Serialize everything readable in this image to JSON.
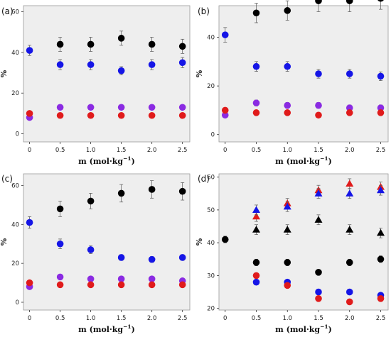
{
  "colors": {
    "black": "#000000",
    "blue": "#1515e6",
    "purple": "#8a2be2",
    "red": "#e01b1b"
  },
  "chart_data": [
    {
      "label": "(a)",
      "type": "scatter",
      "xlabel": "m (mol·kg",
      "xlabel_sup": "−1",
      "xlabel_close": ")",
      "ylabel": "%",
      "xlim": [
        -0.1,
        2.62
      ],
      "ylim": [
        -4,
        63
      ],
      "xticks": [
        0,
        0.5,
        1.0,
        1.5,
        2.0,
        2.5
      ],
      "xtick_labels": [
        "0",
        "0.5",
        "1.0",
        "1.5",
        "2.0",
        "2.5"
      ],
      "yticks": [
        0,
        20,
        40,
        60
      ],
      "series": [
        {
          "color": "black",
          "marker": "circle",
          "x": [
            0.5,
            1.0,
            1.5,
            2.0,
            2.5
          ],
          "y": [
            44,
            44,
            47,
            44,
            43
          ],
          "err": [
            3.5,
            3.5,
            3.5,
            3.5,
            3.5
          ]
        },
        {
          "color": "blue",
          "marker": "circle",
          "x": [
            0,
            0.5,
            1.0,
            1.5,
            2.0,
            2.5
          ],
          "y": [
            41,
            34,
            34,
            31,
            34,
            35
          ],
          "err": [
            2.5,
            2.5,
            2.5,
            2.0,
            2.5,
            2.5
          ]
        },
        {
          "color": "purple",
          "marker": "circle",
          "x": [
            0,
            0.5,
            1.0,
            1.5,
            2.0,
            2.5
          ],
          "y": [
            8,
            13,
            13,
            13,
            13,
            13
          ],
          "err": [
            1.2,
            1.2,
            1.2,
            1.2,
            1.2,
            1.2
          ]
        },
        {
          "color": "red",
          "marker": "circle",
          "x": [
            0,
            0.5,
            1.0,
            1.5,
            2.0,
            2.5
          ],
          "y": [
            10,
            9,
            9,
            9,
            9,
            9
          ],
          "err": [
            0.8,
            0.8,
            0.8,
            0.8,
            0.8,
            0.8
          ]
        }
      ]
    },
    {
      "label": "(b)",
      "type": "scatter",
      "xlabel": "m (mol·kg",
      "xlabel_sup": "−1",
      "xlabel_close": ")",
      "ylabel": "%",
      "xlim": [
        -0.1,
        2.62
      ],
      "ylim": [
        -3,
        53
      ],
      "xticks": [
        0,
        0.5,
        1.0,
        1.5,
        2.0,
        2.5
      ],
      "xtick_labels": [
        "0",
        "0.5",
        "1.0",
        "1.5",
        "2.0",
        "2.5"
      ],
      "yticks": [
        0,
        20,
        40
      ],
      "series": [
        {
          "color": "black",
          "marker": "circle",
          "x": [
            0.5,
            1.0,
            1.5,
            2.0,
            2.5
          ],
          "y": [
            50,
            51,
            55,
            55,
            56
          ],
          "err": [
            4,
            4,
            4.5,
            4.5,
            4.5
          ]
        },
        {
          "color": "blue",
          "marker": "circle",
          "x": [
            0,
            0.5,
            1.0,
            1.5,
            2.0,
            2.5
          ],
          "y": [
            41,
            28,
            28,
            25,
            25,
            24
          ],
          "err": [
            3,
            2,
            2,
            1.8,
            1.8,
            1.8
          ]
        },
        {
          "color": "purple",
          "marker": "circle",
          "x": [
            0,
            0.5,
            1.0,
            1.5,
            2.0,
            2.5
          ],
          "y": [
            8,
            13,
            12,
            12,
            11,
            11
          ],
          "err": [
            1,
            1.2,
            1.2,
            1.2,
            1.2,
            1.2
          ]
        },
        {
          "color": "red",
          "marker": "circle",
          "x": [
            0,
            0.5,
            1.0,
            1.5,
            2.0,
            2.5
          ],
          "y": [
            10,
            9,
            9,
            8,
            9,
            9
          ],
          "err": [
            0.8,
            0.8,
            0.8,
            0.8,
            0.8,
            0.8
          ]
        }
      ]
    },
    {
      "label": "(c)",
      "type": "scatter",
      "xlabel": "m (mol·kg",
      "xlabel_sup": "−1",
      "xlabel_close": ")",
      "ylabel": "%",
      "xlim": [
        -0.1,
        2.62
      ],
      "ylim": [
        -4,
        66
      ],
      "xticks": [
        0,
        0.5,
        1.0,
        1.5,
        2.0,
        2.5
      ],
      "xtick_labels": [
        "0",
        "0.5",
        "1.0",
        "1.5",
        "2.0",
        "2.5"
      ],
      "yticks": [
        0,
        20,
        40,
        60
      ],
      "series": [
        {
          "color": "black",
          "marker": "circle",
          "x": [
            0.5,
            1.0,
            1.5,
            2.0,
            2.5
          ],
          "y": [
            48,
            52,
            56,
            58,
            57
          ],
          "err": [
            4,
            4,
            4.5,
            4.5,
            4.5
          ]
        },
        {
          "color": "blue",
          "marker": "circle",
          "x": [
            0,
            0.5,
            1.0,
            1.5,
            2.0,
            2.5
          ],
          "y": [
            41,
            30,
            27,
            23,
            22,
            23
          ],
          "err": [
            3,
            2.5,
            2,
            1.5,
            1.5,
            1.5
          ]
        },
        {
          "color": "purple",
          "marker": "circle",
          "x": [
            0,
            0.5,
            1.0,
            1.5,
            2.0,
            2.5
          ],
          "y": [
            8,
            13,
            12,
            12,
            12,
            11
          ],
          "err": [
            1,
            1.2,
            1.2,
            1.2,
            1.2,
            1.2
          ]
        },
        {
          "color": "red",
          "marker": "circle",
          "x": [
            0,
            0.5,
            1.0,
            1.5,
            2.0,
            2.5
          ],
          "y": [
            10,
            9,
            9,
            9,
            9,
            9
          ],
          "err": [
            0.8,
            0.8,
            0.8,
            0.8,
            0.8,
            0.8
          ]
        }
      ]
    },
    {
      "label": "(d)",
      "type": "scatter",
      "xlabel": "m (mol·kg",
      "xlabel_sup": "−1",
      "xlabel_close": ")",
      "ylabel": "%",
      "xlim": [
        -0.1,
        2.62
      ],
      "ylim": [
        19.5,
        61
      ],
      "xticks": [
        0,
        0.5,
        1.0,
        1.5,
        2.0,
        2.5
      ],
      "xtick_labels": [
        "0",
        "0.5",
        "1.0",
        "1.5",
        "2.0",
        "2.5"
      ],
      "yticks": [
        20,
        30,
        40,
        50,
        60
      ],
      "series": [
        {
          "color": "red",
          "marker": "triangle",
          "x": [
            0.5,
            1.0,
            1.5,
            2.0,
            2.5
          ],
          "y": [
            48,
            52,
            56,
            58,
            57
          ],
          "err": [
            1.5,
            1.5,
            1.5,
            1.5,
            1.5
          ]
        },
        {
          "color": "blue",
          "marker": "triangle",
          "x": [
            0.5,
            1.0,
            1.5,
            2.0,
            2.5
          ],
          "y": [
            50,
            51,
            55,
            55,
            56
          ],
          "err": [
            1.5,
            1.5,
            1.5,
            1.5,
            1.5
          ]
        },
        {
          "color": "black",
          "marker": "triangle",
          "x": [
            0.5,
            1.0,
            1.5,
            2.0,
            2.5
          ],
          "y": [
            44,
            44,
            47,
            44,
            43
          ],
          "err": [
            1.5,
            1.5,
            1.5,
            1.5,
            1.5
          ]
        },
        {
          "color": "black",
          "marker": "circle",
          "x": [
            0,
            0.5,
            1.0,
            1.5,
            2.0,
            2.5
          ],
          "y": [
            41,
            34,
            34,
            31,
            34,
            35
          ],
          "err": [
            1,
            1,
            1,
            0.5,
            1,
            1
          ]
        },
        {
          "color": "blue",
          "marker": "circle",
          "x": [
            0.5,
            1.0,
            1.5,
            2.0,
            2.5
          ],
          "y": [
            28,
            28,
            25,
            25,
            24
          ],
          "err": [
            0.5,
            0.5,
            0.5,
            0.5,
            0.5
          ]
        },
        {
          "color": "red",
          "marker": "circle",
          "x": [
            0.5,
            1.0,
            1.5,
            2.0,
            2.5
          ],
          "y": [
            30,
            27,
            23,
            22,
            23
          ],
          "err": [
            0.5,
            0.5,
            0.5,
            0.5,
            0.5
          ]
        }
      ]
    }
  ]
}
